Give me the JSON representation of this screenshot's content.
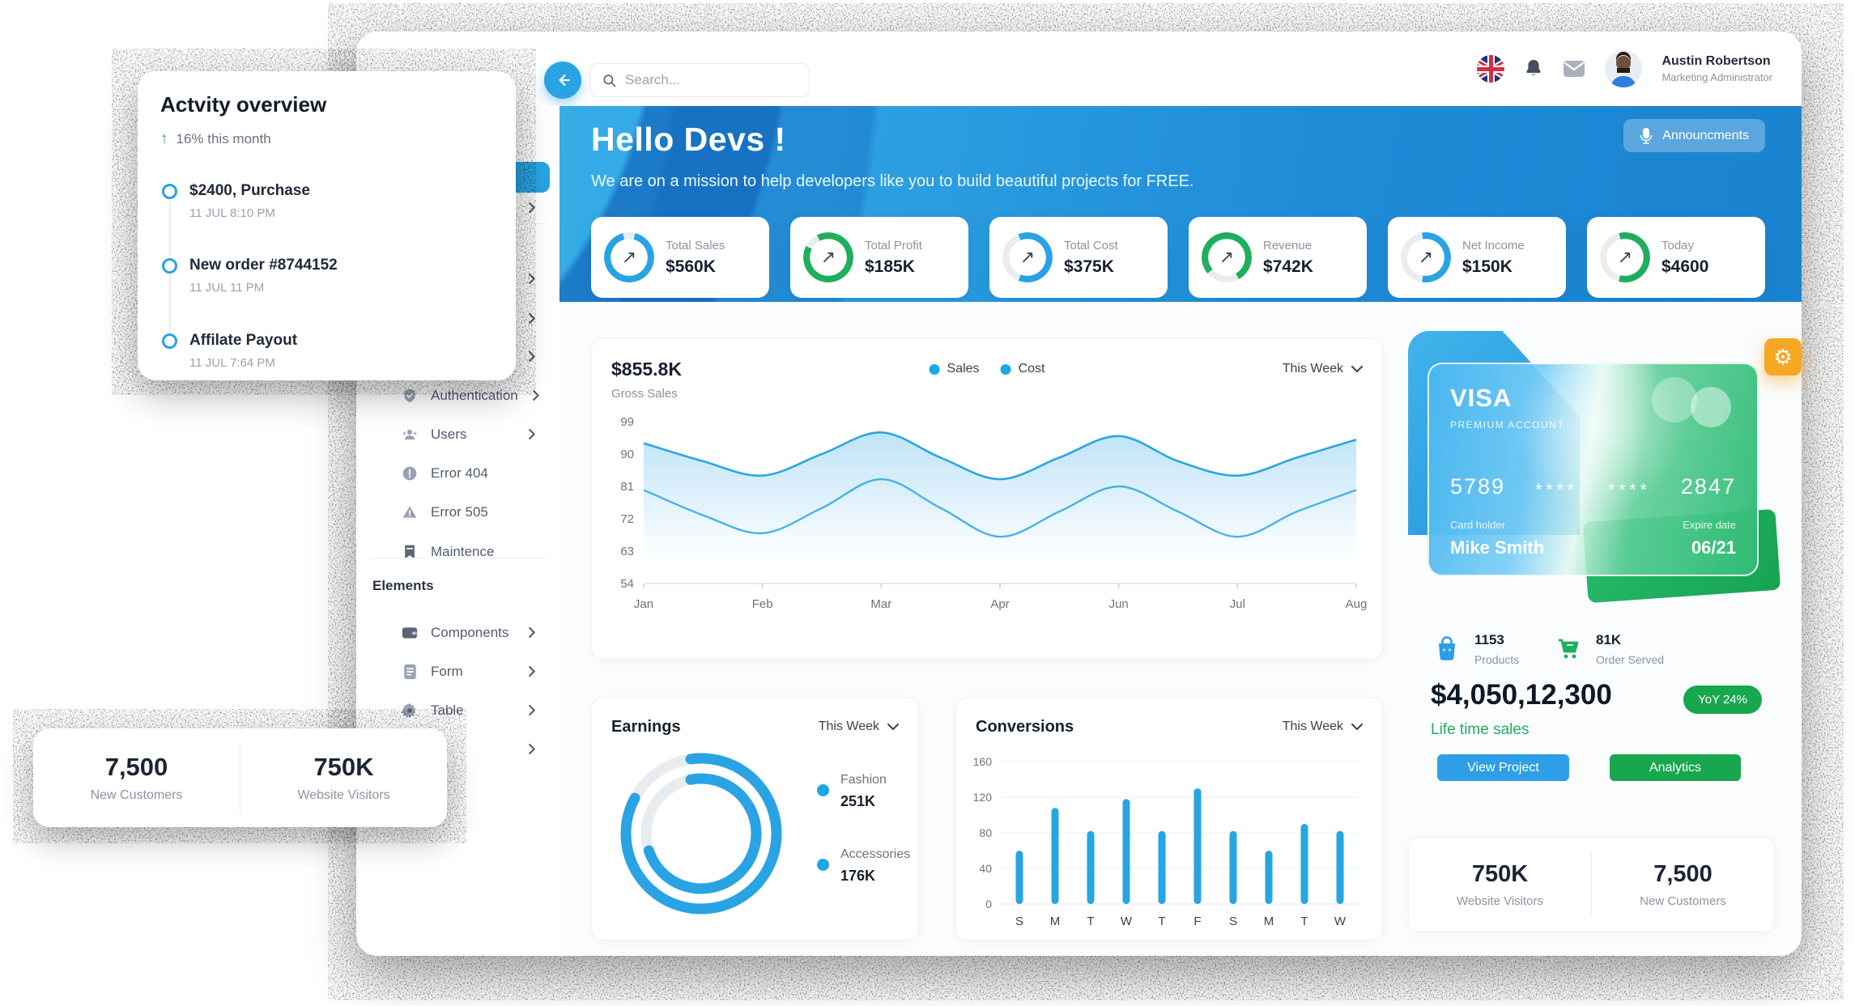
{
  "topbar": {
    "search_placeholder": "Search...",
    "user_name": "Austin Robertson",
    "user_role": "Marketing Administrator"
  },
  "sidebar": {
    "items": [
      {
        "type": "active",
        "label": ""
      },
      {
        "type": "row",
        "label": "",
        "icon": "",
        "chevron": true
      },
      {
        "type": "divider"
      },
      {
        "type": "row",
        "label": "",
        "icon": "",
        "chevron": true
      },
      {
        "type": "row",
        "label": "",
        "icon": "",
        "chevron": true
      },
      {
        "type": "row",
        "label": "",
        "icon": "",
        "chevron": true
      },
      {
        "type": "row",
        "label": "Authentication",
        "icon": "shield",
        "chevron": true
      },
      {
        "type": "row",
        "label": "Users",
        "icon": "users",
        "chevron": true
      },
      {
        "type": "row",
        "label": "Error 404",
        "icon": "alert-circle",
        "chevron": false
      },
      {
        "type": "row",
        "label": "Error 505",
        "icon": "alert-triangle",
        "chevron": false
      },
      {
        "type": "row",
        "label": "Maintence",
        "icon": "bookmark",
        "chevron": false
      },
      {
        "type": "divider"
      },
      {
        "type": "header",
        "label": "Elements"
      },
      {
        "type": "row",
        "label": "Components",
        "icon": "wallet",
        "chevron": true
      },
      {
        "type": "row",
        "label": "Form",
        "icon": "file",
        "chevron": true
      },
      {
        "type": "row",
        "label": "Table",
        "icon": "gear",
        "chevron": true
      },
      {
        "type": "row",
        "label": "",
        "icon": "",
        "chevron": true
      }
    ]
  },
  "hero": {
    "title": "Hello Devs !",
    "subtitle": "We are on a mission to help developers like you to build beautiful projects for FREE.",
    "announcements_label": "Announcments"
  },
  "stats": [
    {
      "label": "Total Sales",
      "value": "$560K",
      "percent": 92,
      "color": "#29a3e3",
      "rotate": 14
    },
    {
      "label": "Total Profit",
      "value": "$185K",
      "percent": 90,
      "color": "#1fae5e",
      "rotate": -27
    },
    {
      "label": "Total Cost",
      "value": "$375K",
      "percent": 62,
      "color": "#29a3e3",
      "rotate": -22
    },
    {
      "label": "Revenue",
      "value": "$742K",
      "percent": 78,
      "color": "#1fae5e",
      "rotate": -130
    },
    {
      "label": "Net Income",
      "value": "$150K",
      "percent": 55,
      "color": "#29a3e3",
      "rotate": -9
    },
    {
      "label": "Today",
      "value": "$4600",
      "percent": 58,
      "color": "#1fae5e",
      "rotate": -14
    }
  ],
  "gross_sales": {
    "amount": "$855.8K",
    "label": "Gross Sales",
    "range_label": "This Week"
  },
  "earnings": {
    "title": "Earnings",
    "range_label": "This Week"
  },
  "conversions": {
    "title": "Conversions",
    "range_label": "This Week"
  },
  "visa": {
    "brand": "VISA",
    "account": "PREMIUM ACCOUNT",
    "num_first": "5789",
    "num_mask": "****",
    "num_last": "2847",
    "holder_label": "Card holder",
    "holder": "Mike Smith",
    "expire_label": "Expire date",
    "expire": "06/21"
  },
  "summary": {
    "products_value": "1153",
    "products_label": "Products",
    "orders_value": "81K",
    "orders_label": "Order Served",
    "lifetime_value": "$4,050,12,300",
    "lifetime_label": "Life time sales",
    "yoy_badge": "YoY 24%",
    "btn_primary": "View Project",
    "btn_secondary": "Analytics"
  },
  "right_stats_card": {
    "a_value": "750K",
    "a_label": "Website Visitors",
    "b_value": "7,500",
    "b_label": "New Customers"
  },
  "left_stats_card": {
    "a_value": "7,500",
    "a_label": "New Customers",
    "b_value": "750K",
    "b_label": "Website Visitors"
  },
  "activity_card": {
    "title": "Actvity overview",
    "trend": "16% this month",
    "items": [
      {
        "title": "$2400, Purchase",
        "time": "11 JUL 8:10 PM"
      },
      {
        "title": "New order #8744152",
        "time": "11 JUL 11 PM"
      },
      {
        "title": "Affilate Payout",
        "time": "11 JUL 7:64 PM"
      }
    ]
  },
  "chart_data": [
    {
      "id": "gross_sales",
      "type": "line",
      "title": "Gross Sales",
      "amount": "$855.8K",
      "x_labels": [
        "Jan",
        "Feb",
        "Mar",
        "Apr",
        "Jun",
        "Jul",
        "Aug"
      ],
      "y_ticks": [
        99,
        90,
        81,
        72,
        63,
        54
      ],
      "ylim": [
        54,
        99
      ],
      "grid": false,
      "legend_position": "top-center",
      "series": [
        {
          "name": "Sales",
          "values": [
            93,
            88,
            84,
            90,
            96,
            89,
            83,
            89,
            95,
            88,
            84,
            89,
            94
          ]
        },
        {
          "name": "Cost",
          "values": [
            80,
            73,
            68,
            75,
            83,
            75,
            67,
            74,
            81,
            74,
            67,
            74,
            80
          ]
        }
      ]
    },
    {
      "id": "earnings",
      "type": "donut",
      "color": "#29a3e3",
      "segments": [
        {
          "name": "Fashion",
          "value": "251K",
          "ring_percent": 85,
          "rotate": -98
        },
        {
          "name": "Accessories",
          "value": "176K",
          "ring_percent": 73,
          "rotate": -101
        }
      ]
    },
    {
      "id": "conversions",
      "type": "bar",
      "categories": [
        "S",
        "M",
        "T",
        "W",
        "T",
        "F",
        "S",
        "M",
        "T",
        "W"
      ],
      "values": [
        60,
        108,
        82,
        118,
        82,
        130,
        82,
        60,
        90,
        82
      ],
      "y_ticks": [
        0,
        40,
        80,
        120,
        160
      ],
      "ylim": [
        0,
        160
      ],
      "grid": true,
      "bar_color": "#25a6e3"
    }
  ]
}
